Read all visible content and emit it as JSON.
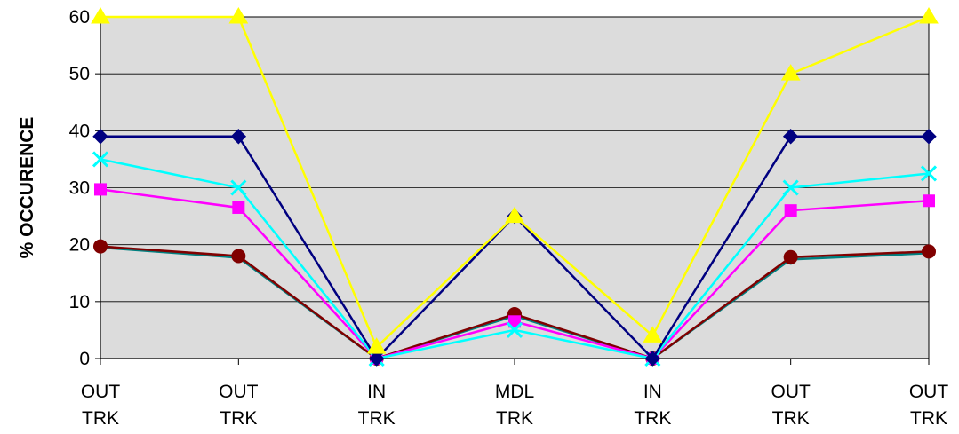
{
  "chart_data": {
    "type": "line",
    "ylabel": "% OCCURENCE",
    "xlabel": "",
    "ylim": [
      0,
      60
    ],
    "yticks": [
      0,
      10,
      20,
      30,
      40,
      50,
      60
    ],
    "categories": [
      [
        "OUT",
        "TRK"
      ],
      [
        "OUT",
        "TRK"
      ],
      [
        "IN",
        "TRK"
      ],
      [
        "MDL",
        "TRK"
      ],
      [
        "IN",
        "TRK"
      ],
      [
        "OUT",
        "TRK"
      ],
      [
        "OUT",
        "TRK"
      ]
    ],
    "grid": true,
    "legend": "none",
    "series": [
      {
        "color": "#FFFF00",
        "marker": "triangle",
        "values": [
          60,
          60,
          2,
          25,
          4,
          50,
          60
        ]
      },
      {
        "color": "#000080",
        "marker": "diamond",
        "values": [
          39,
          39,
          0,
          25,
          0,
          39,
          39
        ]
      },
      {
        "color": "#00FFFF",
        "marker": "x",
        "values": [
          35,
          30,
          0,
          5,
          0,
          30,
          32.5
        ]
      },
      {
        "color": "#FF00FF",
        "marker": "square",
        "values": [
          29.7,
          26.5,
          0,
          6.5,
          0,
          26,
          27.7
        ]
      },
      {
        "color": "#800000",
        "marker": "circle",
        "values": [
          19.7,
          18,
          0,
          7.8,
          0,
          17.8,
          18.8
        ]
      },
      {
        "color": "#008080",
        "marker": "plus",
        "values": [
          19.5,
          17.7,
          0,
          7.5,
          0,
          17.4,
          18.5
        ]
      }
    ]
  }
}
